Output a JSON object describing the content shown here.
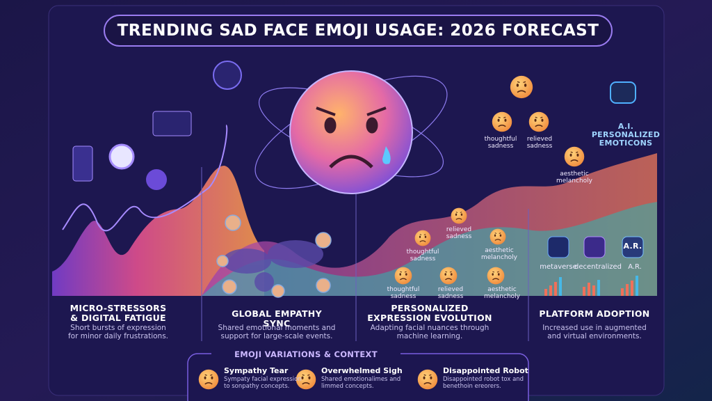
{
  "title": "TRENDING SAD FACE EMOJI USAGE: 2026 FORECAST",
  "ai_panel": {
    "title": "A.I. PERSONALIZED EMOTICONS",
    "emojis": [
      "thoughtful sadness",
      "relieved sadness",
      "aesthetic melancholy"
    ]
  },
  "evolution_emojis": {
    "cluster": [
      "relieved sadness",
      "thoughtful sadness",
      "aesthetic melancholy"
    ],
    "row": [
      "thoughtful sadness",
      "relieved sadness",
      "aesthetic melancholy"
    ]
  },
  "platforms": {
    "icon_label": "A.R.",
    "labels": [
      "metaverse",
      "decentralized",
      "A.R."
    ]
  },
  "sections": [
    {
      "heading": "MICRO-STRESSORS & DIGITAL FATIGUE",
      "text": "Short bursts of expression for minor daily frustrations."
    },
    {
      "heading": "GLOBAL EMPATHY SYNC",
      "text": "Shared emotional moments and support for large-scale events."
    },
    {
      "heading": "PERSONALIZED EXPRESSION EVOLUTION",
      "text": "Adapting facial nuances through machine learning."
    },
    {
      "heading": "PLATFORM ADOPTION",
      "text": "Increased use in augmented and virtual environments."
    }
  ],
  "variations": {
    "title": "EMOJI VARIATIONS & CONTEXT",
    "items": [
      {
        "name": "Sympathy Tear",
        "description": "Sympaty facial expression to sonpathy concepts."
      },
      {
        "name": "Overwhelmed Sigh",
        "description": "Shared emotionalimes and limmed concepts."
      },
      {
        "name": "Disappointed Robot",
        "description": "Disappointed robot tox and benethoin ereorers."
      }
    ]
  }
}
